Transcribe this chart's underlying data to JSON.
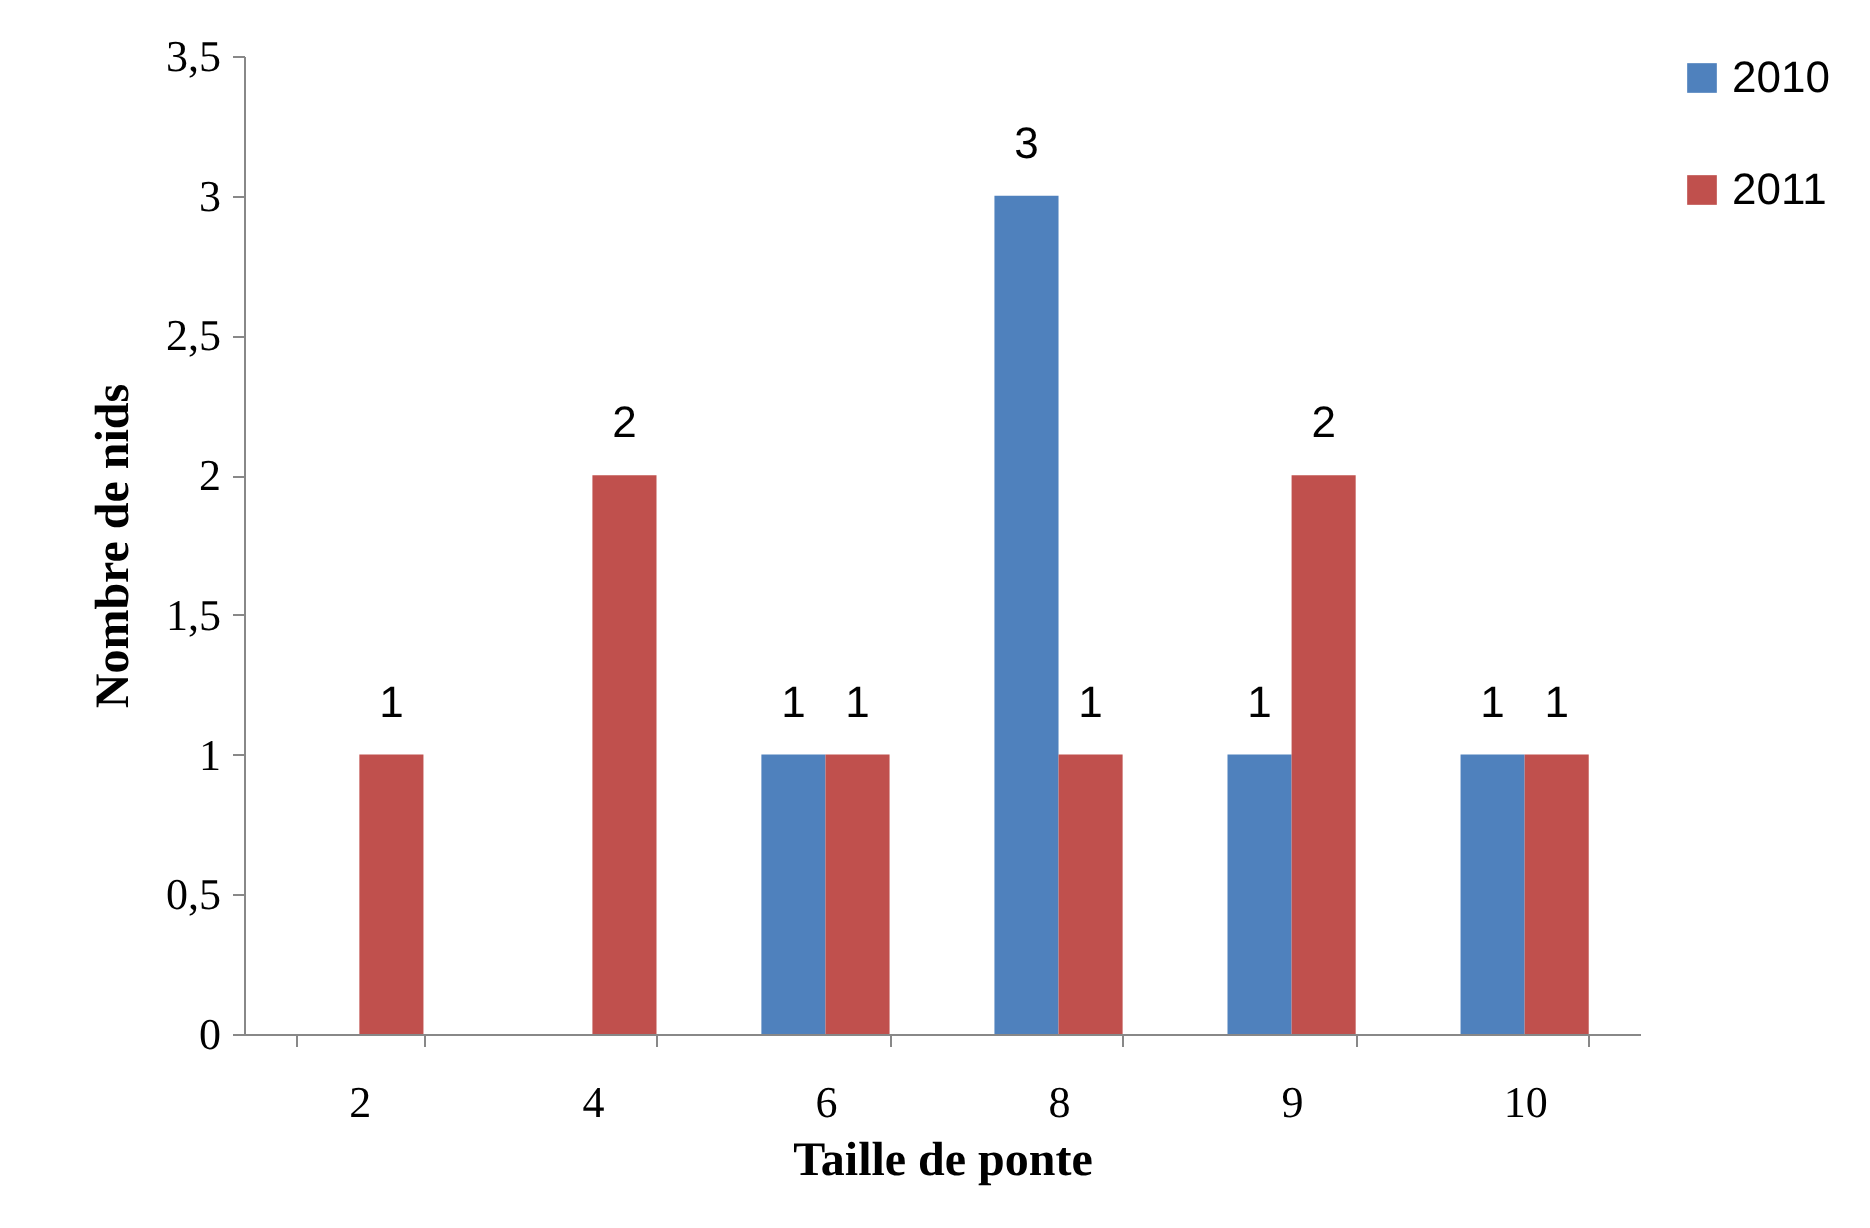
{
  "chart_data": {
    "type": "bar",
    "xlabel": "Taille de ponte",
    "ylabel": "Nombre de nids",
    "categories": [
      "2",
      "4",
      "6",
      "8",
      "9",
      "10"
    ],
    "series": [
      {
        "name": "2010",
        "color": "#4f81bd",
        "values": [
          null,
          null,
          1,
          3,
          1,
          1
        ]
      },
      {
        "name": "2011",
        "color": "#c0504d",
        "values": [
          1,
          2,
          1,
          1,
          2,
          1
        ]
      }
    ],
    "ylim": [
      0,
      3.5
    ],
    "yticks": [
      0,
      {
        "value": 0.5,
        "label": "0,5"
      },
      1,
      {
        "value": 1.5,
        "label": "1,5"
      },
      2,
      {
        "value": 2.5,
        "label": "2,5"
      },
      3,
      {
        "value": 3.5,
        "label": "3,5"
      }
    ],
    "grid": false,
    "legend": "right",
    "data_labels": true
  }
}
